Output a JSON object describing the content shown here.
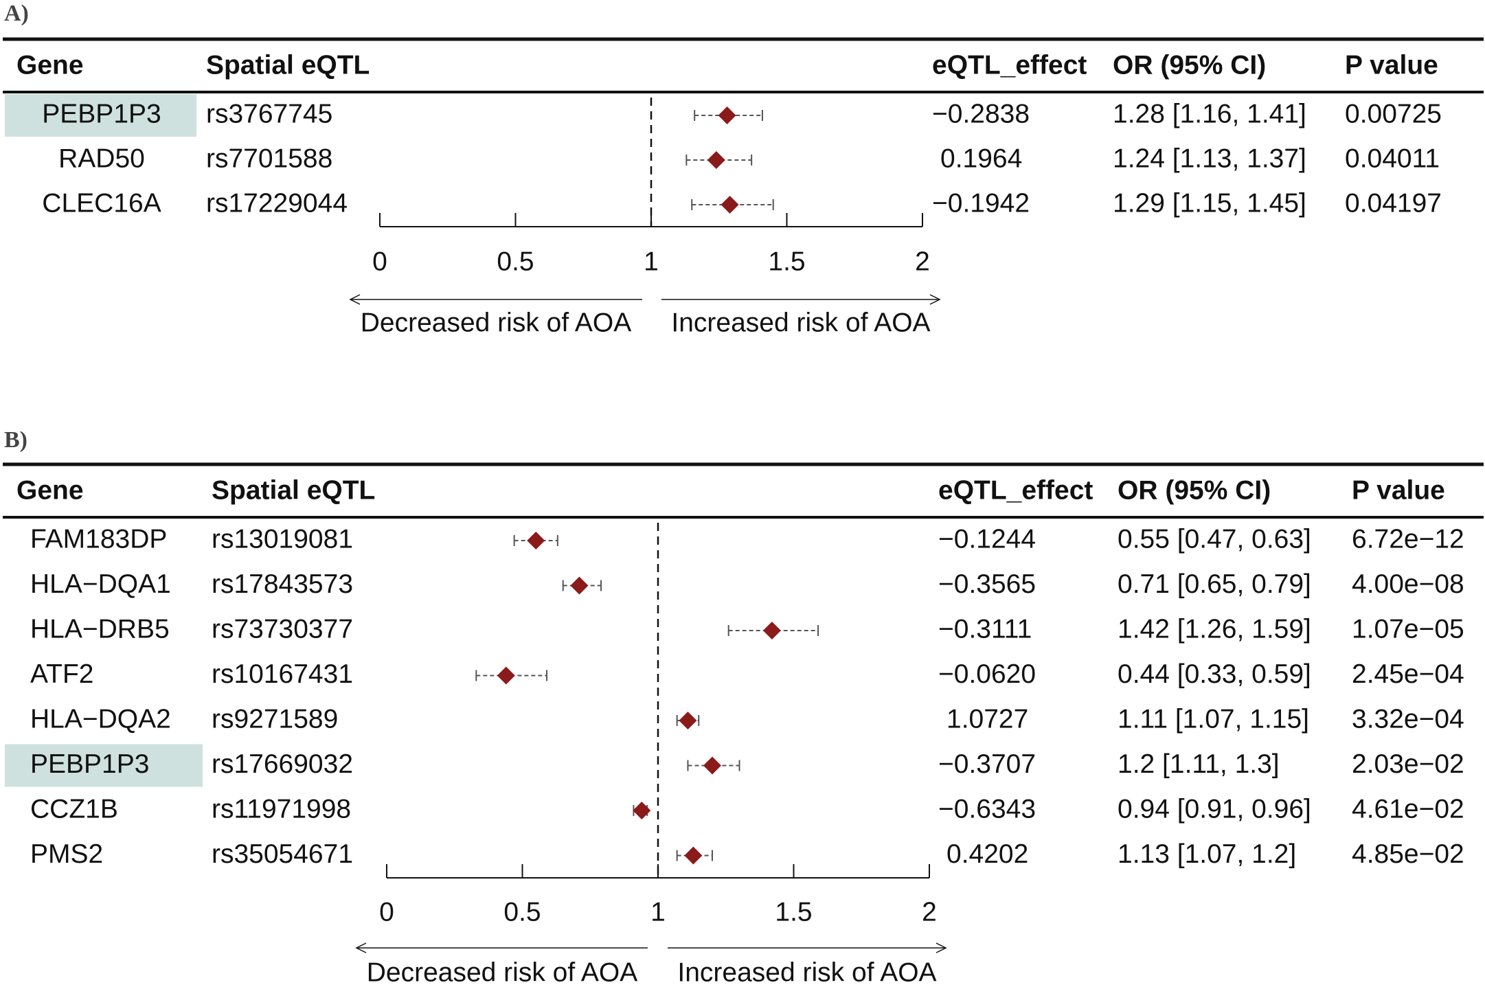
{
  "colors": {
    "diamond": "#8b1a1a",
    "highlight": "#cfe1de",
    "rule": "#111111",
    "text": "#111111",
    "ci": "#555555"
  },
  "chart_data": [
    {
      "type": "forest",
      "panel_label": "A)",
      "headers": {
        "gene": "Gene",
        "snp": "Spatial eQTL",
        "effect": "eQTL_effect",
        "or_ci": "OR (95% CI)",
        "p": "P value"
      },
      "xaxis": {
        "min": 0,
        "max": 2,
        "ref": 1,
        "ticks": [
          0,
          0.5,
          1,
          1.5,
          2
        ],
        "tick_labels": [
          "0",
          "0.5",
          "1",
          "1.5",
          "2"
        ]
      },
      "direction_labels": {
        "left": "Decreased risk of AOA",
        "right": "Increased risk of AOA"
      },
      "rows": [
        {
          "gene": "PEBP1P3",
          "snp": "rs3767745",
          "effect": "−0.2838",
          "or_ci": "1.28 [1.16, 1.41]",
          "p": "0.00725",
          "or": 1.28,
          "lo": 1.16,
          "hi": 1.41,
          "highlight": true
        },
        {
          "gene": "RAD50",
          "snp": "rs7701588",
          "effect": "0.1964",
          "or_ci": "1.24 [1.13, 1.37]",
          "p": "0.04011",
          "or": 1.24,
          "lo": 1.13,
          "hi": 1.37,
          "highlight": false
        },
        {
          "gene": "CLEC16A",
          "snp": "rs17229044",
          "effect": "−0.1942",
          "or_ci": "1.29 [1.15, 1.45]",
          "p": "0.04197",
          "or": 1.29,
          "lo": 1.15,
          "hi": 1.45,
          "highlight": false
        }
      ]
    },
    {
      "type": "forest",
      "panel_label": "B)",
      "headers": {
        "gene": "Gene",
        "snp": "Spatial eQTL",
        "effect": "eQTL_effect",
        "or_ci": "OR (95% CI)",
        "p": "P value"
      },
      "xaxis": {
        "min": 0,
        "max": 2,
        "ref": 1,
        "ticks": [
          0,
          0.5,
          1,
          1.5,
          2
        ],
        "tick_labels": [
          "0",
          "0.5",
          "1",
          "1.5",
          "2"
        ]
      },
      "direction_labels": {
        "left": "Decreased risk of AOA",
        "right": "Increased risk of AOA"
      },
      "rows": [
        {
          "gene": "FAM183DP",
          "snp": "rs13019081",
          "effect": "−0.1244",
          "or_ci": "0.55 [0.47, 0.63]",
          "p": "6.72e−12",
          "or": 0.55,
          "lo": 0.47,
          "hi": 0.63,
          "highlight": false
        },
        {
          "gene": "HLA−DQA1",
          "snp": "rs17843573",
          "effect": "−0.3565",
          "or_ci": "0.71 [0.65, 0.79]",
          "p": "4.00e−08",
          "or": 0.71,
          "lo": 0.65,
          "hi": 0.79,
          "highlight": false
        },
        {
          "gene": "HLA−DRB5",
          "snp": "rs73730377",
          "effect": "−0.3111",
          "or_ci": "1.42 [1.26, 1.59]",
          "p": "1.07e−05",
          "or": 1.42,
          "lo": 1.26,
          "hi": 1.59,
          "highlight": false
        },
        {
          "gene": "ATF2",
          "snp": "rs10167431",
          "effect": "−0.0620",
          "or_ci": "0.44 [0.33, 0.59]",
          "p": "2.45e−04",
          "or": 0.44,
          "lo": 0.33,
          "hi": 0.59,
          "highlight": false
        },
        {
          "gene": "HLA−DQA2",
          "snp": "rs9271589",
          "effect": "1.0727",
          "or_ci": "1.11 [1.07, 1.15]",
          "p": "3.32e−04",
          "or": 1.11,
          "lo": 1.07,
          "hi": 1.15,
          "highlight": false
        },
        {
          "gene": "PEBP1P3",
          "snp": "rs17669032",
          "effect": "−0.3707",
          "or_ci": "1.2 [1.11, 1.3]",
          "p": "2.03e−02",
          "or": 1.2,
          "lo": 1.11,
          "hi": 1.3,
          "highlight": true
        },
        {
          "gene": "CCZ1B",
          "snp": "rs11971998",
          "effect": "−0.6343",
          "or_ci": "0.94 [0.91, 0.96]",
          "p": "4.61e−02",
          "or": 0.94,
          "lo": 0.91,
          "hi": 0.96,
          "highlight": false
        },
        {
          "gene": "PMS2",
          "snp": "rs35054671",
          "effect": "0.4202",
          "or_ci": "1.13 [1.07, 1.2]",
          "p": "4.85e−02",
          "or": 1.13,
          "lo": 1.07,
          "hi": 1.2,
          "highlight": false
        }
      ]
    }
  ]
}
